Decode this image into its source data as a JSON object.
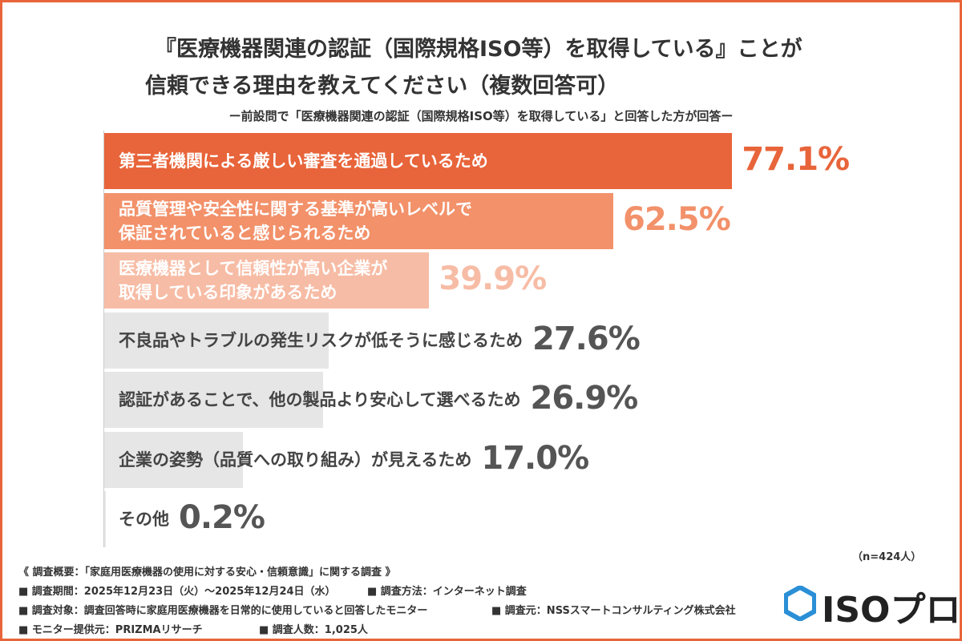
{
  "chart_data": {
    "type": "bar",
    "orientation": "horizontal",
    "title": [
      "『医療機器関連の認証（国際規格ISO等）を取得している』ことが",
      "信頼できる理由を教えてください（複数回答可）"
    ],
    "subtitle": "ー前設問で「医療機器関連の認証（国際規格ISO等）を取得している」と回答した方が回答ー",
    "categories": [
      "第三者機関による厳しい審査を通過しているため",
      "品質管理や安全性に関する基準が高いレベルで\n保証されていると感じられるため",
      "医療機器として信頼性が高い企業が\n取得している印象があるため",
      "不良品やトラブルの発生リスクが低そうに感じるため",
      "認証があることで、他の製品より安心して選べるため",
      "企業の姿勢（品質への取り組み）が見えるため",
      "その他"
    ],
    "values": [
      77.1,
      62.5,
      39.9,
      27.6,
      26.9,
      17.0,
      0.2
    ],
    "value_labels": [
      "77.1%",
      "62.5%",
      "39.9%",
      "27.6%",
      "26.9%",
      "17.0%",
      "0.2%"
    ],
    "colors": [
      "#e8643a",
      "#f2916a",
      "#f7bca5",
      "#e6e6e6",
      "#e6e6e6",
      "#e6e6e6",
      "#e6e6e6"
    ],
    "label_colors": [
      "#e8643a",
      "#f2916a",
      "#f7bca5",
      "#555555",
      "#555555",
      "#555555",
      "#555555"
    ],
    "text_colors": [
      "#ffffff",
      "#ffffff",
      "#ffffff",
      "#444444",
      "#444444",
      "#444444",
      "#444444"
    ],
    "note": "（n=424人）"
  },
  "footer": {
    "heading": "《 調査概要：「家庭用医療機器の使用に対する安心・信頼意識」に関する調査 》",
    "rows": [
      [
        "■ 調査期間：2025年12月23日（火）～2025年12月24日（水）",
        "■ 調査方法：インターネット調査"
      ],
      [
        "■ 調査対象：調査回答時に家庭用医療機器を日常的に使用していると回答したモニター",
        "■ 調査元：NSSスマートコンサルティング株式会社"
      ],
      [
        "■ モニター提供元：PRIZMAリサーチ",
        "■ 調査人数：1,025人"
      ]
    ]
  },
  "logo": "ISOプロ"
}
